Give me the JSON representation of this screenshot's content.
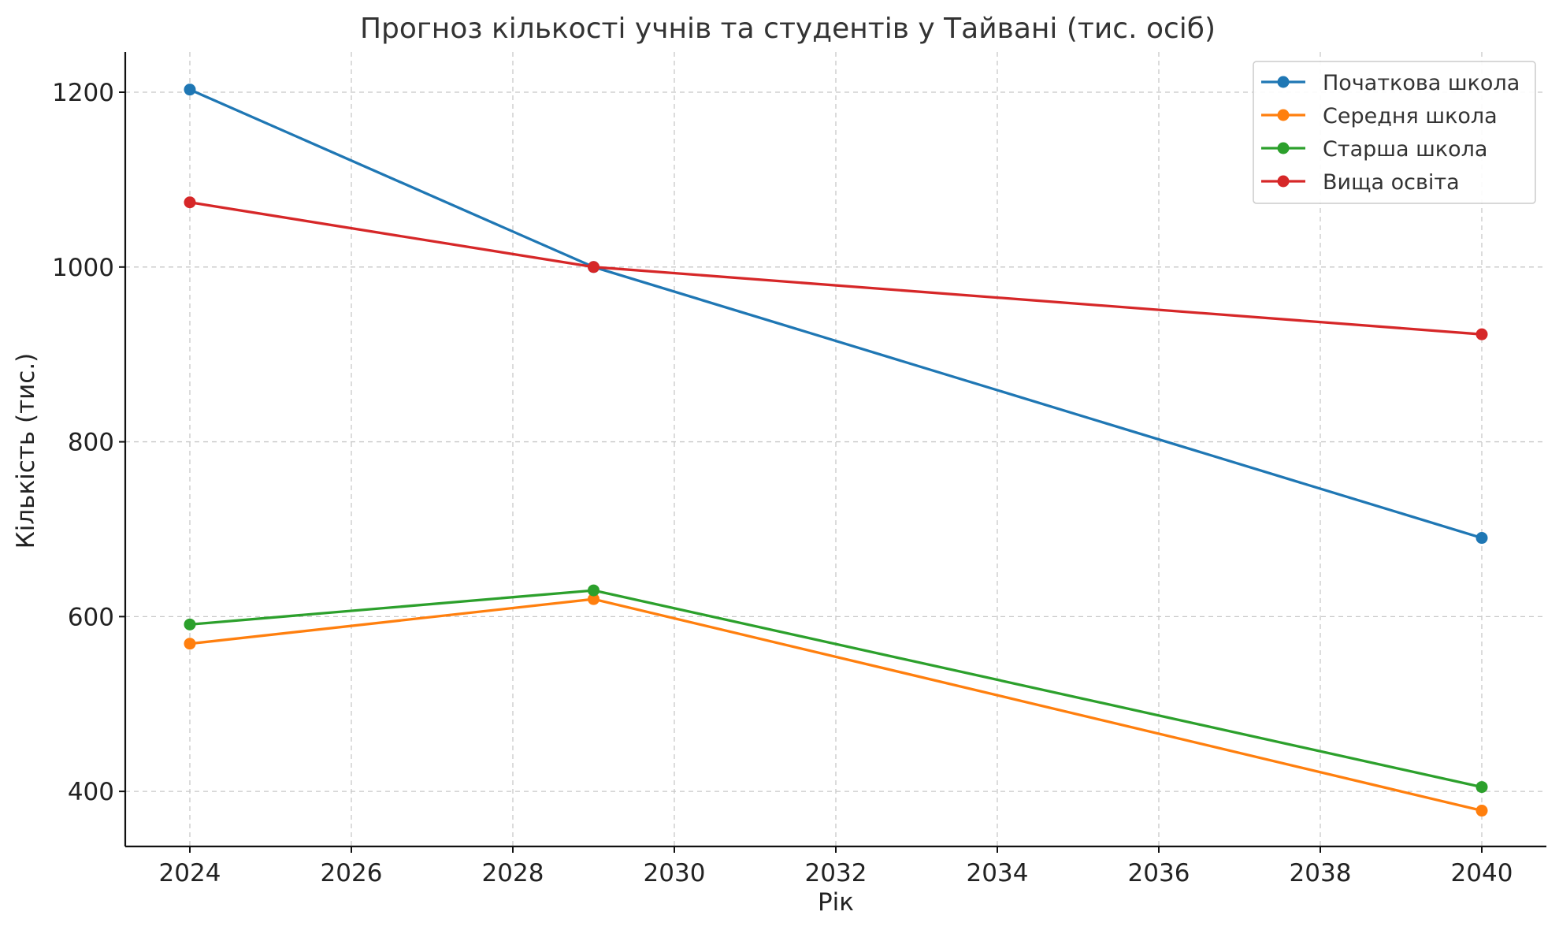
{
  "chart_data": {
    "type": "line",
    "title": "Прогноз кількості учнів та студентів у Тайвані (тис. осіб)",
    "xlabel": "Рік",
    "ylabel": "Кількість (тис.)",
    "x": [
      2024,
      2029,
      2040
    ],
    "xlim": [
      2023.2,
      2040.8
    ],
    "ylim": [
      337,
      1246
    ],
    "xticks": [
      2024,
      2026,
      2028,
      2030,
      2032,
      2034,
      2036,
      2038,
      2040
    ],
    "yticks": [
      400,
      600,
      800,
      1000,
      1200
    ],
    "grid": true,
    "legend_position": "top-right",
    "series": [
      {
        "name": "Початкова школа",
        "color": "#1f77b4",
        "values": [
          1203,
          1000,
          690
        ]
      },
      {
        "name": "Середня школа",
        "color": "#ff7f0e",
        "values": [
          569,
          620,
          378
        ]
      },
      {
        "name": "Старша школа",
        "color": "#2ca02c",
        "values": [
          591,
          630,
          405
        ]
      },
      {
        "name": "Вища освіта",
        "color": "#d62728",
        "values": [
          1074,
          1000,
          923
        ]
      }
    ]
  }
}
